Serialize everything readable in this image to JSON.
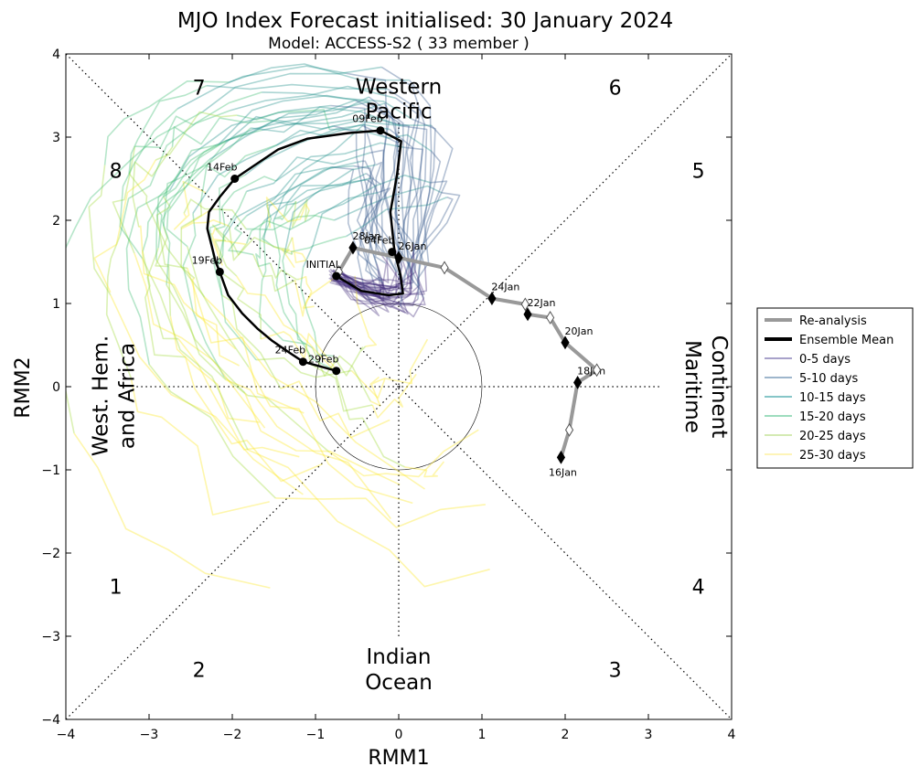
{
  "chart_data": {
    "type": "line",
    "title": "MJO Index Forecast initialised:  30  January 2024",
    "subtitle": "Model: ACCESS-S2 ( 33 member )",
    "xlabel": "RMM1",
    "ylabel": "RMM2",
    "xlim": [
      -4,
      4
    ],
    "ylim": [
      -4,
      4
    ],
    "xticks": [
      "−4",
      "−3",
      "−2",
      "−1",
      "0",
      "1",
      "2",
      "3",
      "4"
    ],
    "yticks": [
      "−4",
      "−3",
      "−2",
      "−1",
      "0",
      "1",
      "2",
      "3",
      "4"
    ],
    "phase_numbers": [
      {
        "label": "1",
        "x": -3.4,
        "y": -2.4
      },
      {
        "label": "2",
        "x": -2.4,
        "y": -3.4
      },
      {
        "label": "3",
        "x": 2.6,
        "y": -3.4
      },
      {
        "label": "4",
        "x": 3.6,
        "y": -2.4
      },
      {
        "label": "5",
        "x": 3.6,
        "y": 2.6
      },
      {
        "label": "6",
        "x": 2.6,
        "y": 3.6
      },
      {
        "label": "7",
        "x": -2.4,
        "y": 3.6
      },
      {
        "label": "8",
        "x": -3.4,
        "y": 2.6
      }
    ],
    "region_labels": {
      "top": [
        "Western",
        "Pacific"
      ],
      "bottom": [
        "Indian",
        "Ocean"
      ],
      "left": [
        "West. Hem.",
        "and Africa"
      ],
      "right": [
        "Maritime",
        "Continent"
      ]
    },
    "legend": {
      "placement": "outside-right",
      "entries": [
        {
          "label": "Re-analysis",
          "color": "#999999",
          "width": 4
        },
        {
          "label": "Ensemble Mean",
          "color": "#000000",
          "width": 4
        },
        {
          "label": "0-5 days",
          "color": "#8c84b8",
          "width": 1.5
        },
        {
          "label": "5-10 days",
          "color": "#7f9dbb",
          "width": 1.5
        },
        {
          "label": "10-15 days",
          "color": "#5fb4b6",
          "width": 1.5
        },
        {
          "label": "15-20 days",
          "color": "#7fd1a8",
          "width": 1.5
        },
        {
          "label": "20-25 days",
          "color": "#c5e49a",
          "width": 1.5
        },
        {
          "label": "25-30 days",
          "color": "#fdf0a0",
          "width": 1.5
        }
      ]
    },
    "colors": {
      "reanalysis": "#999999",
      "ensemble_mean": "#000000",
      "members": [
        "#46327e",
        "#3b5c8f",
        "#21918c",
        "#3fbc73",
        "#a0da39",
        "#fde725"
      ]
    },
    "reanalysis": {
      "x": [
        1.95,
        2.05,
        2.15,
        2.38,
        2.0,
        1.82,
        1.55,
        1.52,
        1.12,
        0.55,
        0.0
      ],
      "y": [
        -0.85,
        -0.52,
        0.05,
        0.2,
        0.53,
        0.83,
        0.87,
        0.99,
        1.06,
        1.43,
        1.55
      ],
      "markers": [
        {
          "x": 1.95,
          "y": -0.85,
          "filled": true,
          "label": "16Jan",
          "pos": "below"
        },
        {
          "x": 2.05,
          "y": -0.52,
          "filled": false
        },
        {
          "x": 2.15,
          "y": 0.05,
          "filled": true,
          "label": "18Jan",
          "pos": "above"
        },
        {
          "x": 2.38,
          "y": 0.2,
          "filled": false
        },
        {
          "x": 2.0,
          "y": 0.53,
          "filled": true,
          "label": "20Jan",
          "pos": "above"
        },
        {
          "x": 1.82,
          "y": 0.83,
          "filled": false
        },
        {
          "x": 1.55,
          "y": 0.87,
          "filled": true,
          "label": "22Jan",
          "pos": "above"
        },
        {
          "x": 1.52,
          "y": 0.99,
          "filled": false
        },
        {
          "x": 1.12,
          "y": 1.06,
          "filled": true,
          "label": "24Jan",
          "pos": "above"
        },
        {
          "x": 0.55,
          "y": 1.43,
          "filled": false
        },
        {
          "x": 0.0,
          "y": 1.55,
          "filled": true,
          "label": "26Jan",
          "pos": "above"
        },
        {
          "x": -0.55,
          "y": 1.67,
          "filled": true,
          "label": "28Jan",
          "pos": "above"
        },
        {
          "x": -0.72,
          "y": 1.38,
          "filled": false
        }
      ]
    },
    "ensemble_mean": {
      "x": [
        -0.75,
        -0.45,
        -0.12,
        0.05,
        0.02,
        -0.05,
        -0.1,
        -0.02,
        0.03,
        -0.22,
        -0.6,
        -1.1,
        -1.45,
        -1.75,
        -1.97,
        -2.15,
        -2.28,
        -2.3,
        -2.25,
        -2.2,
        -2.15,
        -2.05,
        -1.88,
        -1.7,
        -1.52,
        -1.3,
        -1.15,
        -0.75
      ],
      "y": [
        1.33,
        1.15,
        1.1,
        1.12,
        1.35,
        1.62,
        2.1,
        2.55,
        2.95,
        3.08,
        3.05,
        2.98,
        2.85,
        2.65,
        2.5,
        2.28,
        2.1,
        1.9,
        1.7,
        1.5,
        1.38,
        1.1,
        0.88,
        0.7,
        0.55,
        0.4,
        0.3,
        0.19
      ],
      "markers": [
        {
          "x": -0.75,
          "y": 1.33,
          "label": "INITIAL"
        },
        {
          "x": -0.08,
          "y": 1.62,
          "label": "04Feb"
        },
        {
          "x": -0.22,
          "y": 3.08,
          "label": "09Feb"
        },
        {
          "x": -1.97,
          "y": 2.5,
          "label": "14Feb"
        },
        {
          "x": -2.15,
          "y": 1.38,
          "label": "19Feb"
        },
        {
          "x": -1.15,
          "y": 0.3,
          "label": "24Feb"
        },
        {
          "x": -0.75,
          "y": 0.19,
          "label": "29Feb"
        }
      ]
    },
    "member_count": 33,
    "forecast_days": 30
  }
}
